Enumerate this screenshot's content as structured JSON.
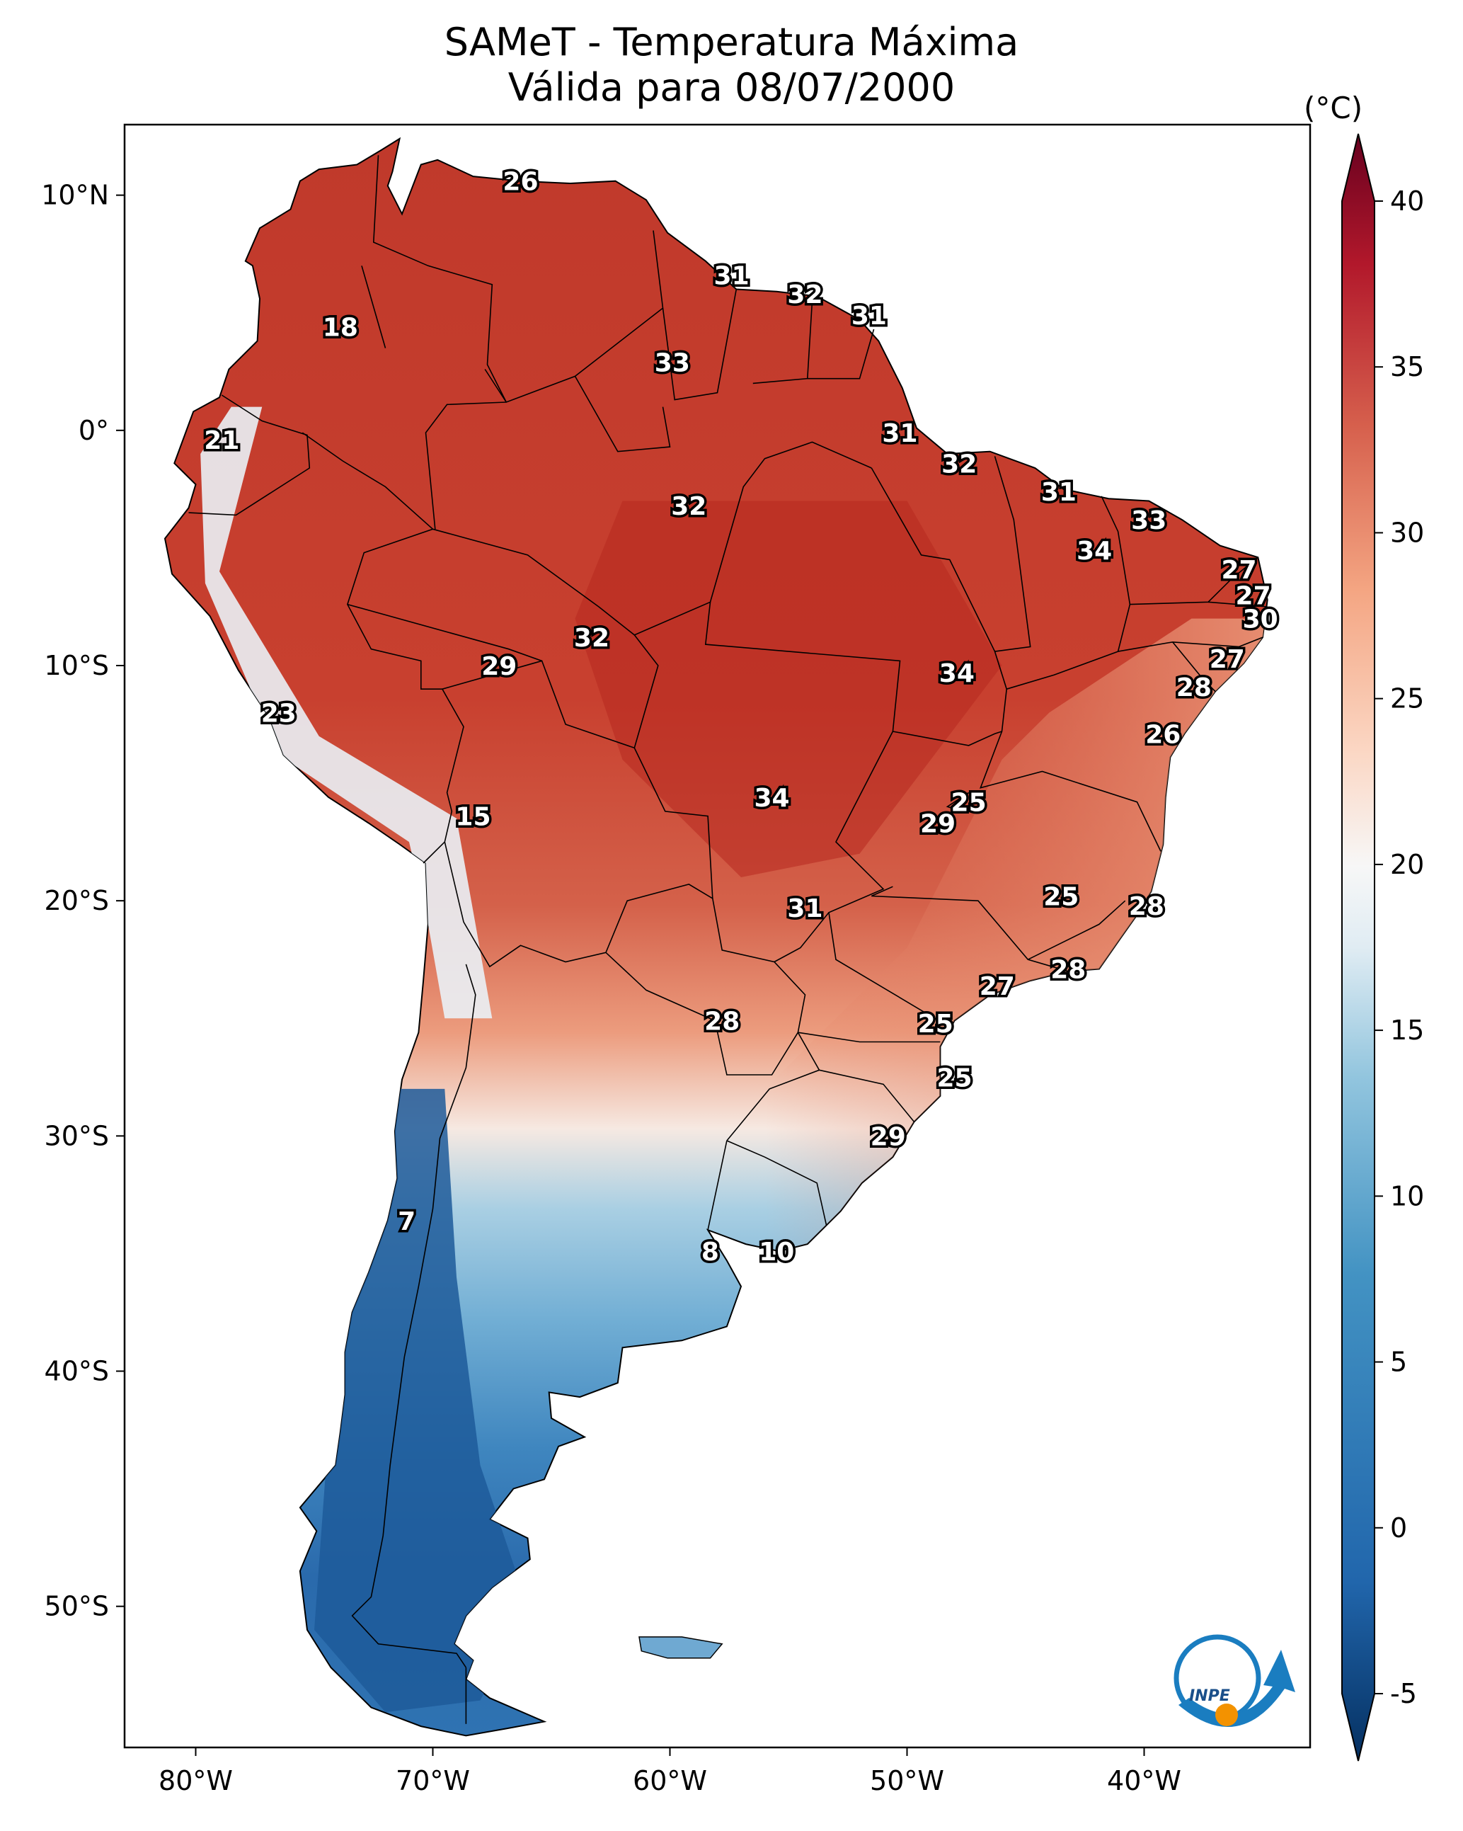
{
  "title_line1": "SAMeT - Temperatura Máxima",
  "title_line2": "Válida para 08/07/2000",
  "colorbar": {
    "unit": "(°C)",
    "ticks": [
      "40",
      "35",
      "30",
      "25",
      "20",
      "15",
      "10",
      "5",
      "0",
      "-5"
    ],
    "range": [
      -5,
      40
    ],
    "colormap": "RdBu_r",
    "extend": "both"
  },
  "axes": {
    "lat_ticks": [
      "10°N",
      "0°",
      "10°S",
      "20°S",
      "30°S",
      "40°S",
      "50°S"
    ],
    "lon_ticks": [
      "80°W",
      "70°W",
      "60°W",
      "50°W",
      "40°W"
    ],
    "lon_range": [
      -83,
      -33
    ],
    "lat_range": [
      -56,
      13
    ]
  },
  "contour_labels": [
    {
      "text": "26",
      "lon": -66.3,
      "lat": 10.6
    },
    {
      "text": "31",
      "lon": -57.4,
      "lat": 6.6
    },
    {
      "text": "32",
      "lon": -54.3,
      "lat": 5.8
    },
    {
      "text": "31",
      "lon": -51.6,
      "lat": 4.9
    },
    {
      "text": "33",
      "lon": -59.9,
      "lat": 2.9
    },
    {
      "text": "18",
      "lon": -73.9,
      "lat": 4.4
    },
    {
      "text": "21",
      "lon": -78.9,
      "lat": -0.4
    },
    {
      "text": "31",
      "lon": -50.3,
      "lat": -0.1
    },
    {
      "text": "32",
      "lon": -47.8,
      "lat": -1.4
    },
    {
      "text": "31",
      "lon": -43.6,
      "lat": -2.6
    },
    {
      "text": "33",
      "lon": -39.8,
      "lat": -3.8
    },
    {
      "text": "32",
      "lon": -59.2,
      "lat": -3.2
    },
    {
      "text": "34",
      "lon": -42.1,
      "lat": -5.1
    },
    {
      "text": "27",
      "lon": -36.0,
      "lat": -5.9
    },
    {
      "text": "27",
      "lon": -35.4,
      "lat": -7.0
    },
    {
      "text": "30",
      "lon": -35.1,
      "lat": -8.0
    },
    {
      "text": "27",
      "lon": -36.5,
      "lat": -9.7
    },
    {
      "text": "28",
      "lon": -37.9,
      "lat": -10.9
    },
    {
      "text": "32",
      "lon": -63.3,
      "lat": -8.8
    },
    {
      "text": "29",
      "lon": -67.2,
      "lat": -10.0
    },
    {
      "text": "34",
      "lon": -47.9,
      "lat": -10.3
    },
    {
      "text": "26",
      "lon": -39.2,
      "lat": -12.9
    },
    {
      "text": "23",
      "lon": -76.5,
      "lat": -12.0
    },
    {
      "text": "15",
      "lon": -68.3,
      "lat": -16.4
    },
    {
      "text": "34",
      "lon": -55.7,
      "lat": -15.6
    },
    {
      "text": "25",
      "lon": -47.4,
      "lat": -15.8
    },
    {
      "text": "29",
      "lon": -48.7,
      "lat": -16.7
    },
    {
      "text": "25",
      "lon": -43.5,
      "lat": -19.8
    },
    {
      "text": "28",
      "lon": -39.9,
      "lat": -20.2
    },
    {
      "text": "31",
      "lon": -54.3,
      "lat": -20.3
    },
    {
      "text": "28",
      "lon": -43.2,
      "lat": -22.9
    },
    {
      "text": "27",
      "lon": -46.2,
      "lat": -23.6
    },
    {
      "text": "28",
      "lon": -57.8,
      "lat": -25.1
    },
    {
      "text": "25",
      "lon": -48.8,
      "lat": -25.2
    },
    {
      "text": "25",
      "lon": -48.0,
      "lat": -27.5
    },
    {
      "text": "29",
      "lon": -50.8,
      "lat": -30.0
    },
    {
      "text": "7",
      "lon": -71.1,
      "lat": -33.6
    },
    {
      "text": "8",
      "lon": -58.3,
      "lat": -34.9
    },
    {
      "text": "10",
      "lon": -55.5,
      "lat": -34.9
    }
  ],
  "logo_text": "INPE",
  "colors": {
    "ocean": "#ffffff",
    "frame": "#000000",
    "hot_dark": "#67001f",
    "hot": "#c0392b",
    "warm": "#e8896b",
    "neutral": "#f7f7f7",
    "cool": "#92c5de",
    "cold": "#2166ac",
    "cold_dark": "#053061",
    "logo_blue": "#1a7dc0",
    "logo_orange": "#f39200"
  }
}
